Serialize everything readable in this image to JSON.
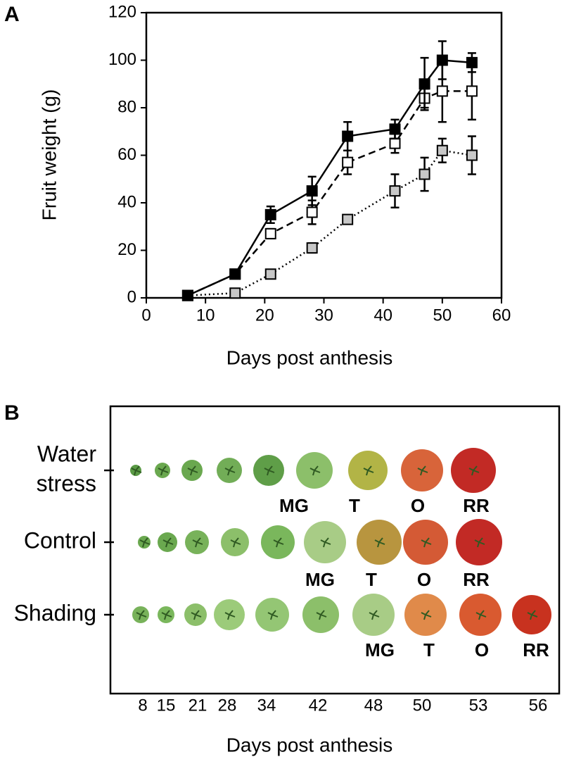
{
  "panel_labels": [
    "A",
    "B"
  ],
  "chart_data": {
    "type": "line",
    "x_label": "Days post anthesis",
    "y_label": "Fruit weight (g)",
    "x": [
      7,
      15,
      21,
      28,
      34,
      42,
      47,
      50,
      55
    ],
    "series": [
      {
        "color": "#000000",
        "marker_fill": "#000000",
        "dash": "solid",
        "values": [
          1,
          10,
          35,
          45,
          68,
          71,
          90,
          100,
          99
        ],
        "errors": [
          0,
          1,
          3.5,
          6,
          6,
          4,
          11,
          8,
          4
        ]
      },
      {
        "color": "#000000",
        "marker_fill": "#ffffff",
        "dash": "dashed",
        "values": [
          1,
          10,
          27,
          36,
          57,
          65,
          84,
          87,
          87
        ],
        "errors": [
          0,
          1,
          2,
          5,
          5,
          4,
          4,
          13,
          12
        ]
      },
      {
        "color": "#000000",
        "marker_fill": "#c8c8c8",
        "dash": "dotted",
        "values": [
          1,
          2,
          10,
          21,
          33,
          45,
          52,
          62,
          60
        ],
        "errors": [
          0,
          0,
          0,
          2,
          0,
          7,
          7,
          5,
          8
        ]
      }
    ],
    "xlim": [
      0,
      60
    ],
    "xticks": [
      0,
      10,
      20,
      30,
      40,
      50,
      60
    ],
    "ylim": [
      0,
      120
    ],
    "yticks": [
      0,
      20,
      40,
      60,
      80,
      100,
      120
    ],
    "grid": false
  },
  "panel_b": {
    "rows": [
      {
        "label_lines": [
          "Water",
          "stress"
        ],
        "stages": [
          "MG",
          "T",
          "O",
          "RR"
        ]
      },
      {
        "label_lines": [
          "Control"
        ],
        "stages": [
          "MG",
          "T",
          "O",
          "RR"
        ]
      },
      {
        "label_lines": [
          "Shading"
        ],
        "stages": [
          "MG",
          "T",
          "O",
          "RR"
        ]
      }
    ],
    "day_labels": [
      "8",
      "15",
      "21",
      "28",
      "34",
      "42",
      "48",
      "50",
      "53",
      "56"
    ],
    "x_label": "Days post anthesis"
  }
}
